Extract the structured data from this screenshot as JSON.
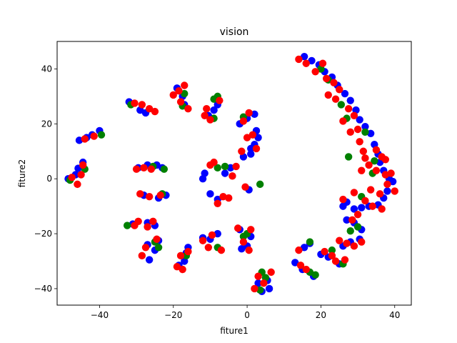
{
  "chart_data": {
    "type": "scatter",
    "title": "vision",
    "xlabel": "fiture1",
    "ylabel": "fiture2",
    "xlim": [
      -51.5,
      44.5
    ],
    "ylim": [
      -46,
      50
    ],
    "xticks": [
      -40,
      -20,
      0,
      20,
      40
    ],
    "yticks": [
      -40,
      -20,
      0,
      20,
      40
    ],
    "grid": false,
    "legend": "none",
    "colors": [
      "#0000ff",
      "#008000",
      "#ff0000"
    ],
    "series": [
      {
        "color": "#0000ff",
        "points": [
          [
            -48.5,
            0.0
          ],
          [
            -46.5,
            1.5
          ],
          [
            -45.8,
            3.8
          ],
          [
            -44.5,
            6.0
          ],
          [
            -45.5,
            14.0
          ],
          [
            -43.5,
            15.0
          ],
          [
            -42.0,
            16.0
          ],
          [
            -40.0,
            17.5
          ],
          [
            -32.0,
            28.0
          ],
          [
            -29.0,
            25.0
          ],
          [
            -27.5,
            24.0
          ],
          [
            -29.5,
            4.0
          ],
          [
            -27.0,
            5.0
          ],
          [
            -24.5,
            5.0
          ],
          [
            -23.0,
            4.0
          ],
          [
            -28.0,
            -6.0
          ],
          [
            -24.0,
            -7.0
          ],
          [
            -22.0,
            -6.0
          ],
          [
            -31.0,
            -16.5
          ],
          [
            -27.0,
            -16.0
          ],
          [
            -25.0,
            -17.0
          ],
          [
            -27.0,
            -24.0
          ],
          [
            -25.0,
            -26.0
          ],
          [
            -26.5,
            -29.5
          ],
          [
            -24.0,
            -22.5
          ],
          [
            -19.0,
            33.0
          ],
          [
            -17.5,
            30.0
          ],
          [
            -17.0,
            27.0
          ],
          [
            -18.5,
            -31.5
          ],
          [
            -17.0,
            -30.0
          ],
          [
            -16.5,
            -27.0
          ],
          [
            -16.0,
            -25.0
          ],
          [
            -12.0,
            -21.5
          ],
          [
            -10.0,
            -22.0
          ],
          [
            -8.0,
            -20.0
          ],
          [
            -10.5,
            23.0
          ],
          [
            -9.0,
            25.0
          ],
          [
            -8.0,
            27.0
          ],
          [
            -12.0,
            0.0
          ],
          [
            -11.5,
            2.0
          ],
          [
            -10.0,
            -5.5
          ],
          [
            -8.0,
            -7.5
          ],
          [
            -6.0,
            2.0
          ],
          [
            -4.5,
            4.0
          ],
          [
            -2.0,
            -18.5
          ],
          [
            -1.5,
            -25.5
          ],
          [
            0.0,
            -24.5
          ],
          [
            1.0,
            -21.0
          ],
          [
            -2.0,
            20.0
          ],
          [
            0.0,
            22.0
          ],
          [
            2.0,
            23.5
          ],
          [
            1.0,
            11.0
          ],
          [
            2.0,
            12.5
          ],
          [
            3.0,
            15.0
          ],
          [
            2.5,
            17.5
          ],
          [
            -1.0,
            8.0
          ],
          [
            1.0,
            9.0
          ],
          [
            0.5,
            -4.0
          ],
          [
            3.0,
            -38.0
          ],
          [
            4.0,
            -41.0
          ],
          [
            6.0,
            -40.0
          ],
          [
            5.5,
            -37.0
          ],
          [
            13.0,
            -30.5
          ],
          [
            15.0,
            -33.0
          ],
          [
            18.0,
            -35.5
          ],
          [
            15.5,
            -25.0
          ],
          [
            17.0,
            -23.5
          ],
          [
            20.0,
            -27.5
          ],
          [
            22.0,
            -28.5
          ],
          [
            25.0,
            -31.0
          ],
          [
            26.0,
            -24.5
          ],
          [
            28.0,
            -23.0
          ],
          [
            30.5,
            -22.0
          ],
          [
            15.5,
            44.5
          ],
          [
            17.5,
            43.0
          ],
          [
            19.5,
            41.5
          ],
          [
            21.0,
            39.0
          ],
          [
            23.0,
            37.0
          ],
          [
            24.5,
            34.0
          ],
          [
            26.5,
            31.0
          ],
          [
            28.0,
            28.5
          ],
          [
            29.5,
            25.0
          ],
          [
            30.5,
            21.5
          ],
          [
            32.0,
            19.0
          ],
          [
            33.5,
            16.5
          ],
          [
            34.5,
            12.5
          ],
          [
            35.5,
            9.0
          ],
          [
            36.0,
            6.0
          ],
          [
            37.0,
            3.0
          ],
          [
            38.5,
            0.0
          ],
          [
            39.5,
            -1.0
          ],
          [
            38.0,
            -4.5
          ],
          [
            37.0,
            -7.0
          ],
          [
            35.5,
            -9.5
          ],
          [
            33.0,
            -10.0
          ],
          [
            31.0,
            -10.5
          ],
          [
            29.0,
            -11.0
          ],
          [
            27.0,
            -8.5
          ],
          [
            26.0,
            -10.0
          ],
          [
            27.0,
            -15.0
          ],
          [
            29.0,
            -16.0
          ],
          [
            31.0,
            -18.5
          ]
        ]
      },
      {
        "color": "#008000",
        "points": [
          [
            -48.0,
            -0.5
          ],
          [
            -44.0,
            3.5
          ],
          [
            -39.5,
            16.0
          ],
          [
            -31.5,
            27.0
          ],
          [
            -25.5,
            4.5
          ],
          [
            -22.5,
            3.5
          ],
          [
            -23.0,
            -5.5
          ],
          [
            -32.5,
            -17.0
          ],
          [
            -25.0,
            -23.0
          ],
          [
            -24.0,
            -25.0
          ],
          [
            -17.0,
            31.0
          ],
          [
            -17.5,
            26.5
          ],
          [
            -16.5,
            -28.0
          ],
          [
            -9.0,
            29.0
          ],
          [
            -8.0,
            30.0
          ],
          [
            -9.0,
            22.0
          ],
          [
            -8.0,
            4.0
          ],
          [
            -6.0,
            4.5
          ],
          [
            -8.0,
            -25.0
          ],
          [
            -1.0,
            -21.0
          ],
          [
            0.0,
            -20.0
          ],
          [
            -1.0,
            22.5
          ],
          [
            3.5,
            -2.0
          ],
          [
            4.0,
            -34.0
          ],
          [
            5.0,
            -36.0
          ],
          [
            3.5,
            -40.5
          ],
          [
            17.0,
            -34.0
          ],
          [
            18.5,
            -35.0
          ],
          [
            17.0,
            -23.0
          ],
          [
            20.0,
            40.0
          ],
          [
            22.0,
            36.0
          ],
          [
            25.5,
            27.0
          ],
          [
            27.0,
            22.0
          ],
          [
            27.5,
            8.0
          ],
          [
            32.0,
            17.0
          ],
          [
            34.0,
            2.0
          ],
          [
            34.5,
            6.5
          ],
          [
            31.0,
            -6.5
          ],
          [
            28.0,
            -19.0
          ],
          [
            30.0,
            -17.5
          ],
          [
            26.0,
            -31.0
          ],
          [
            23.0,
            -26.0
          ]
        ]
      },
      {
        "color": "#ff0000",
        "points": [
          [
            -47.5,
            0.5
          ],
          [
            -46.0,
            -2.0
          ],
          [
            -45.0,
            1.5
          ],
          [
            -44.5,
            5.0
          ],
          [
            -44.0,
            14.5
          ],
          [
            -41.5,
            15.5
          ],
          [
            -30.5,
            27.5
          ],
          [
            -28.5,
            27.0
          ],
          [
            -26.5,
            25.5
          ],
          [
            -25.0,
            24.5
          ],
          [
            -30.0,
            3.5
          ],
          [
            -28.0,
            4.0
          ],
          [
            -26.0,
            3.5
          ],
          [
            -29.0,
            -5.5
          ],
          [
            -26.5,
            -6.5
          ],
          [
            -23.5,
            -6.0
          ],
          [
            -30.5,
            -17.0
          ],
          [
            -29.5,
            -15.5
          ],
          [
            -27.0,
            -17.5
          ],
          [
            -25.5,
            -15.5
          ],
          [
            -28.5,
            -28.0
          ],
          [
            -27.5,
            -25.0
          ],
          [
            -24.5,
            -22.0
          ],
          [
            -20.0,
            30.5
          ],
          [
            -18.5,
            32.0
          ],
          [
            -18.0,
            28.0
          ],
          [
            -17.0,
            34.0
          ],
          [
            -16.0,
            25.5
          ],
          [
            -19.0,
            -32.0
          ],
          [
            -18.0,
            -28.0
          ],
          [
            -17.5,
            -33.0
          ],
          [
            -16.0,
            -26.5
          ],
          [
            -11.5,
            23.0
          ],
          [
            -11.0,
            25.5
          ],
          [
            -10.0,
            21.5
          ],
          [
            -7.5,
            28.5
          ],
          [
            -10.0,
            5.0
          ],
          [
            -9.0,
            6.0
          ],
          [
            -8.0,
            -9.0
          ],
          [
            -6.5,
            -6.5
          ],
          [
            -5.0,
            -7.0
          ],
          [
            -4.0,
            1.0
          ],
          [
            -3.0,
            4.5
          ],
          [
            -12.0,
            -22.5
          ],
          [
            -10.5,
            -25.0
          ],
          [
            -9.5,
            -20.5
          ],
          [
            -7.0,
            -26.0
          ],
          [
            -2.5,
            -18.0
          ],
          [
            -1.0,
            -23.0
          ],
          [
            0.5,
            -26.0
          ],
          [
            1.0,
            -18.5
          ],
          [
            0.0,
            15.0
          ],
          [
            1.5,
            16.0
          ],
          [
            0.5,
            24.0
          ],
          [
            -1.0,
            21.0
          ],
          [
            -1.5,
            10.0
          ],
          [
            2.5,
            11.0
          ],
          [
            -0.5,
            -3.0
          ],
          [
            3.0,
            -35.5
          ],
          [
            4.5,
            -38.0
          ],
          [
            6.5,
            -34.0
          ],
          [
            2.0,
            -40.0
          ],
          [
            14.5,
            -31.5
          ],
          [
            16.0,
            -33.0
          ],
          [
            14.0,
            -26.0
          ],
          [
            21.0,
            -26.5
          ],
          [
            23.0,
            -28.0
          ],
          [
            24.0,
            -30.0
          ],
          [
            26.5,
            -29.5
          ],
          [
            25.0,
            -22.5
          ],
          [
            27.0,
            -23.5
          ],
          [
            29.0,
            -24.5
          ],
          [
            31.0,
            -23.0
          ],
          [
            14.0,
            43.5
          ],
          [
            16.0,
            42.0
          ],
          [
            18.5,
            39.0
          ],
          [
            20.5,
            42.0
          ],
          [
            21.5,
            36.5
          ],
          [
            22.0,
            30.5
          ],
          [
            23.5,
            35.0
          ],
          [
            24.0,
            29.0
          ],
          [
            25.0,
            32.5
          ],
          [
            26.0,
            21.0
          ],
          [
            27.5,
            25.5
          ],
          [
            29.0,
            23.0
          ],
          [
            28.0,
            17.0
          ],
          [
            30.0,
            18.0
          ],
          [
            30.5,
            13.5
          ],
          [
            31.5,
            10.0
          ],
          [
            32.0,
            7.5
          ],
          [
            33.0,
            5.0
          ],
          [
            35.0,
            10.5
          ],
          [
            36.5,
            8.0
          ],
          [
            35.0,
            3.0
          ],
          [
            37.5,
            1.5
          ],
          [
            38.0,
            -2.0
          ],
          [
            40.0,
            -4.5
          ],
          [
            36.0,
            -5.5
          ],
          [
            33.5,
            -4.0
          ],
          [
            32.0,
            -8.0
          ],
          [
            30.0,
            -13.0
          ],
          [
            28.5,
            -15.0
          ],
          [
            26.0,
            -7.5
          ],
          [
            29.0,
            -5.0
          ],
          [
            31.0,
            3.0
          ],
          [
            34.0,
            -10.0
          ],
          [
            36.5,
            -11.0
          ],
          [
            37.5,
            7.0
          ],
          [
            39.0,
            2.0
          ]
        ]
      }
    ]
  }
}
